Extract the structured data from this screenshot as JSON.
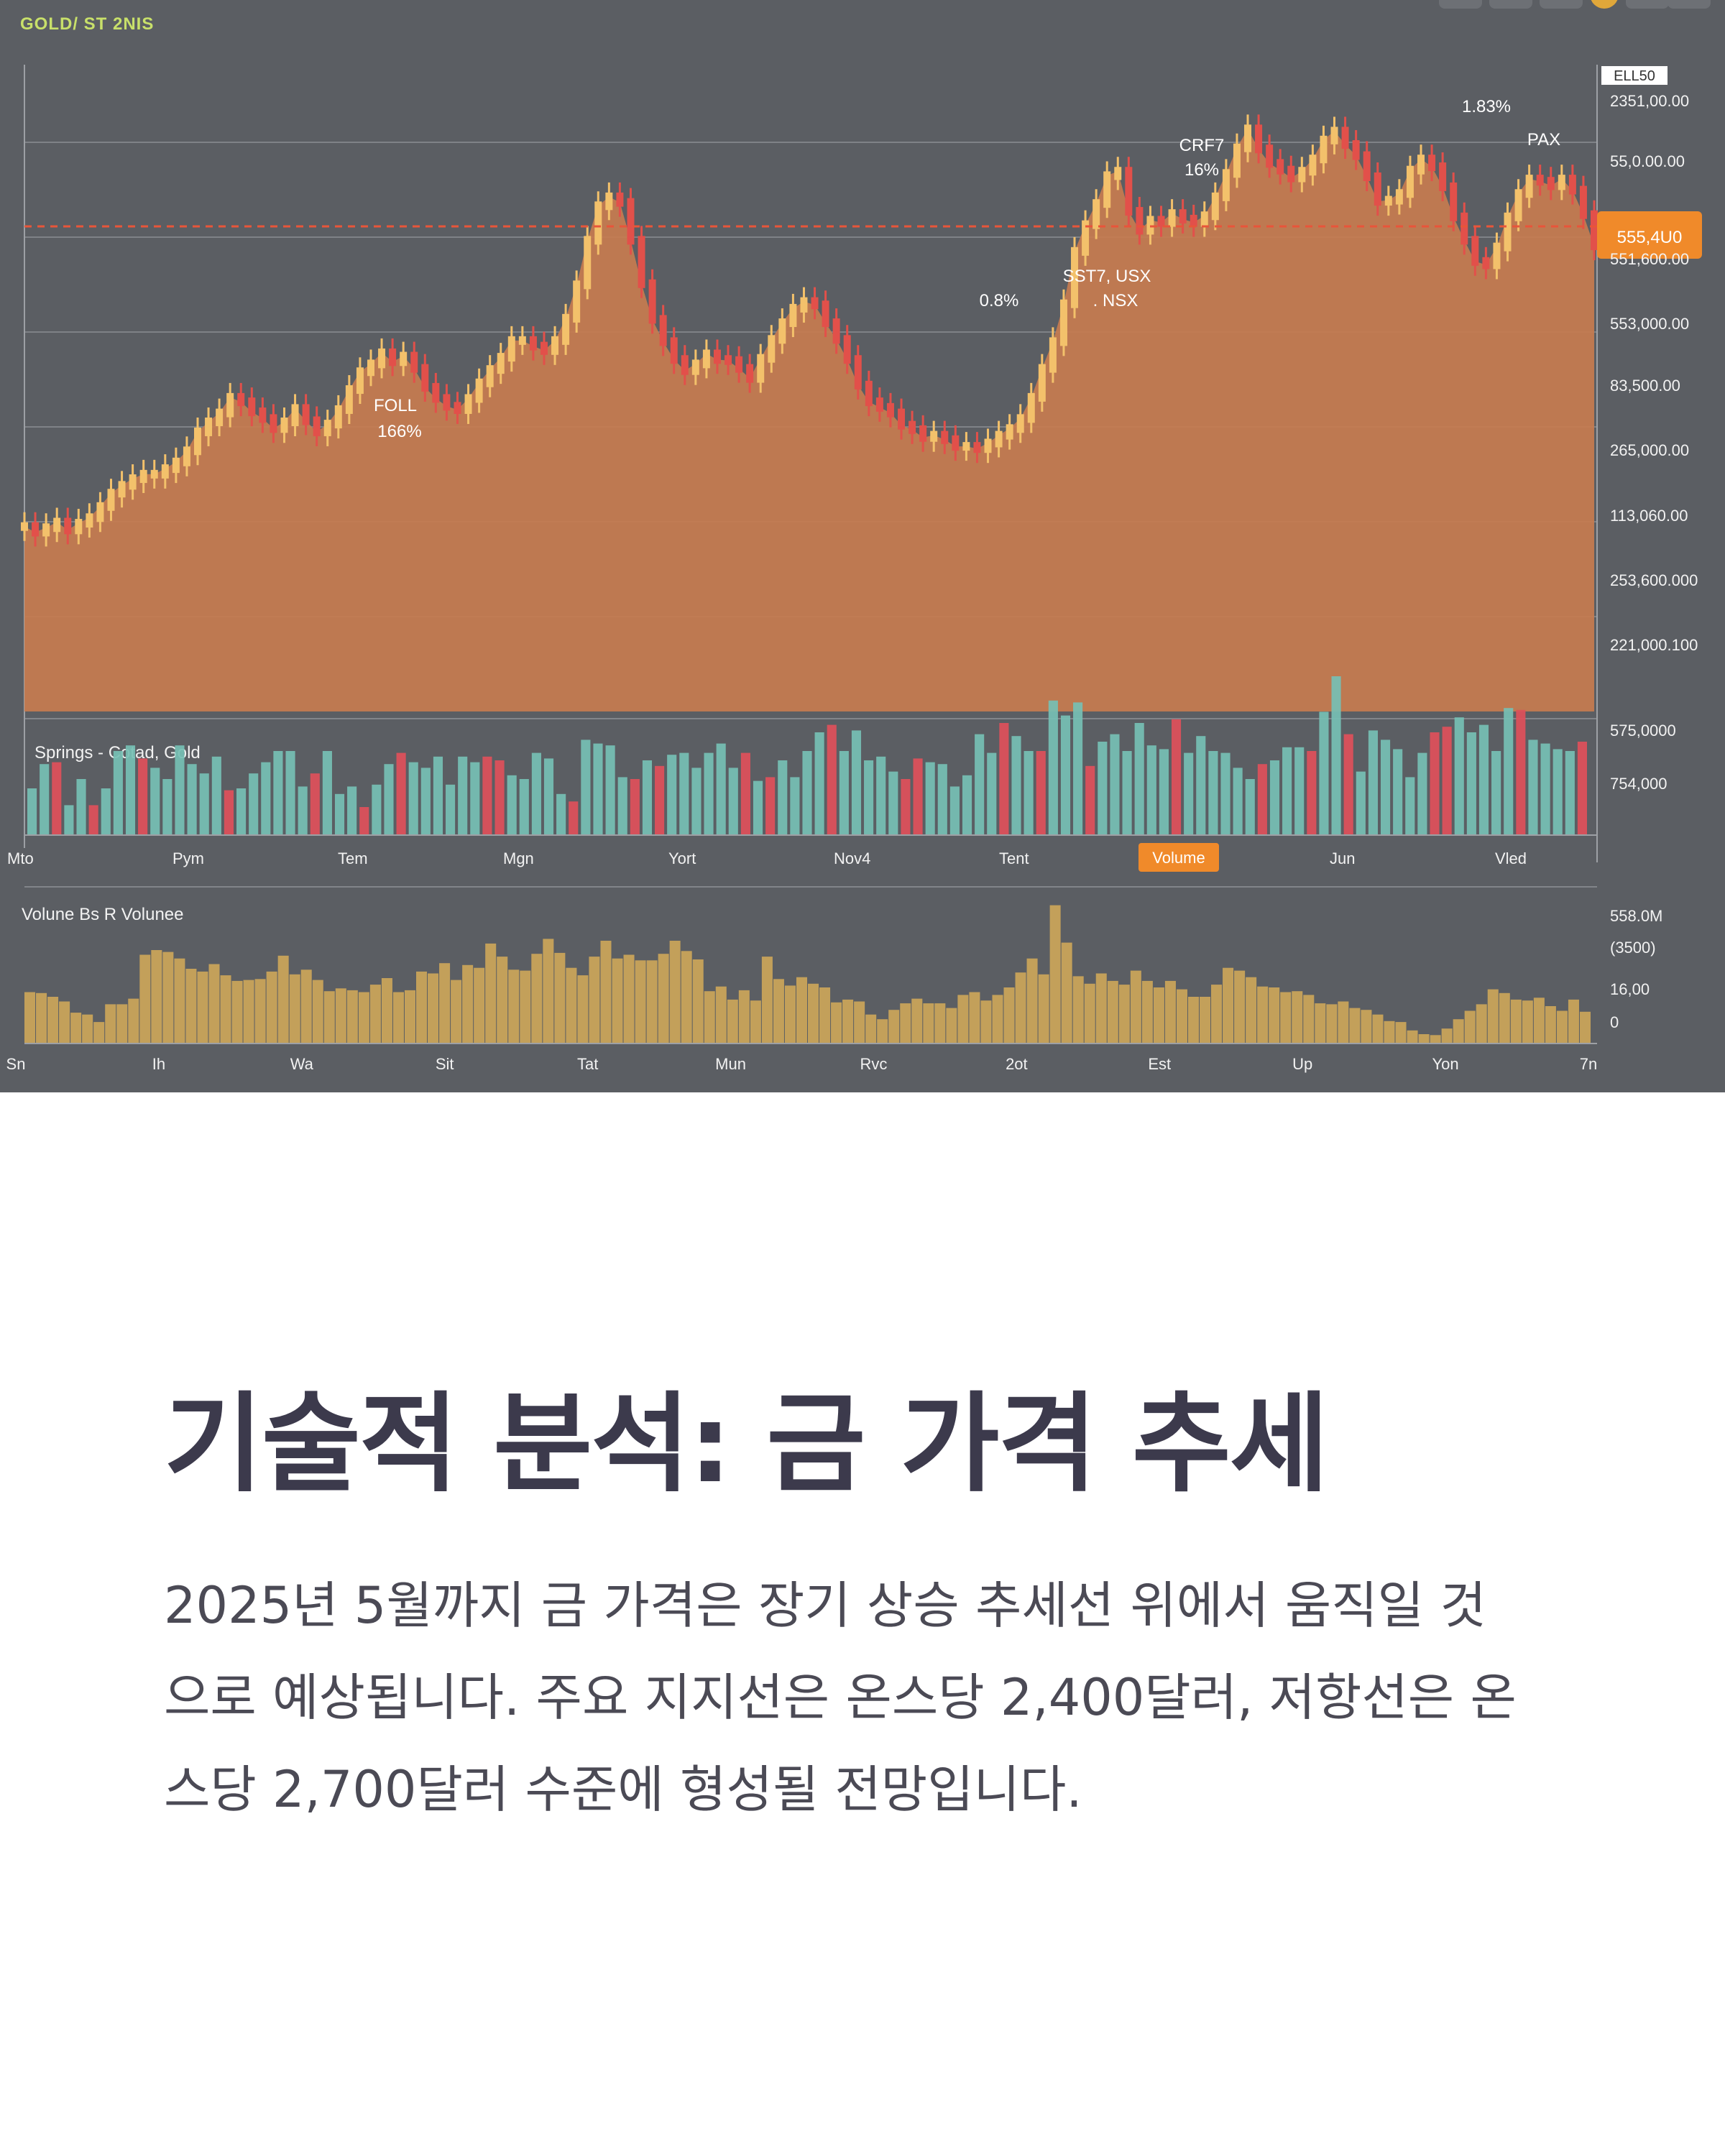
{
  "header": {
    "ticker": "GOLD/ ST 2NIS",
    "price_box_top": "ELL50"
  },
  "colors": {
    "panel_bg": "#5b5e63",
    "area_fill": "#c77c4f",
    "candle_up": "#f3c16b",
    "candle_down": "#e2504a",
    "vol_teal": "#76c0b4",
    "vol_red": "#e0505a",
    "vol2": "#c9a35a",
    "ref_line": "#e8553a",
    "badge": "#f08a2a"
  },
  "chart_data": [
    {
      "type": "line",
      "subtype": "candlestick-area",
      "title": "",
      "y_tick_labels": [
        "2351,00.00",
        "55,0.00.00",
        "551,600.00",
        "553,000.00",
        "83,500.00",
        "265,000.00",
        "113,060.00",
        "253,600.000",
        "221,000.100"
      ],
      "price_series": [
        66,
        61,
        65,
        70,
        63,
        69,
        74,
        84,
        96,
        103,
        109,
        113,
        113,
        118,
        124,
        134,
        151,
        160,
        168,
        182,
        178,
        169,
        163,
        154,
        160,
        172,
        161,
        151,
        158,
        171,
        189,
        205,
        212,
        222,
        214,
        219,
        208,
        191,
        181,
        174,
        171,
        181,
        195,
        207,
        218,
        233,
        233,
        228,
        224,
        233,
        253,
        283,
        323,
        354,
        362,
        357,
        323,
        284,
        252,
        232,
        216,
        206,
        212,
        221,
        216,
        215,
        208,
        199,
        217,
        234,
        249,
        262,
        268,
        265,
        249,
        234,
        216,
        193,
        178,
        173,
        168,
        157,
        153,
        146,
        148,
        144,
        138,
        138,
        136,
        141,
        148,
        154,
        163,
        182,
        208,
        232,
        266,
        313,
        337,
        356,
        381,
        385,
        349,
        332,
        341,
        339,
        347,
        342,
        339,
        345,
        362,
        383,
        406,
        423,
        405,
        392,
        386,
        379,
        385,
        396,
        413,
        421,
        409,
        399,
        380,
        358,
        359,
        365,
        386,
        396,
        389,
        371,
        344,
        323,
        304,
        301,
        317,
        344,
        365,
        378,
        376,
        372,
        378,
        368,
        346,
        318
      ],
      "annotations": [
        {
          "text": "FOLL"
        },
        {
          "text": "166%"
        },
        {
          "text": "0.8%"
        },
        {
          "text": "SST7, USX"
        },
        {
          "text": ". NSX"
        },
        {
          "text": "CRF7"
        },
        {
          "text": "16%"
        },
        {
          "text": "1.83%"
        },
        {
          "text": "PAX"
        }
      ],
      "reference_line_label": "555,4U0"
    },
    {
      "type": "bar",
      "title": "Springs - Cotad, Gold",
      "y_tick_labels": [
        "575,0000",
        "754,000"
      ],
      "x_tick_labels": [
        "Mto",
        "Pym",
        "Tem",
        "Mgn",
        "Yort",
        "Nov4",
        "Tent",
        "Volume",
        "Jun",
        "Vled"
      ],
      "values": [
        25,
        38,
        39,
        16,
        30,
        16,
        25,
        45,
        48,
        41,
        36,
        30,
        48,
        38,
        33,
        42,
        24,
        25,
        33,
        39,
        45,
        45,
        26,
        33,
        45,
        22,
        26,
        15,
        27,
        38,
        44,
        39,
        36,
        42,
        27,
        42,
        39,
        42,
        40,
        32,
        30,
        44,
        41,
        22,
        18,
        51,
        49,
        48,
        31,
        30,
        40,
        37,
        43,
        44,
        36,
        44,
        49,
        36,
        44,
        29,
        31,
        40,
        31,
        45,
        55,
        59,
        45,
        56,
        40,
        42,
        34,
        30,
        41,
        39,
        38,
        26,
        32,
        54,
        44,
        60,
        53,
        45,
        45,
        72,
        64,
        71,
        37,
        50,
        54,
        45,
        60,
        48,
        46,
        62,
        44,
        53,
        45,
        44,
        36,
        30,
        38,
        40,
        47,
        47,
        45,
        66,
        85,
        54,
        34,
        56,
        51,
        46,
        31,
        44,
        55,
        58,
        63,
        55,
        59,
        45,
        68,
        67,
        51,
        49,
        46,
        45,
        50
      ],
      "highlight_index": 106
    },
    {
      "type": "bar",
      "title": "Volune Bs R Volunee",
      "y_tick_labels": [
        "558.0M",
        "(3500)",
        "16,00",
        "0"
      ],
      "x_tick_labels": [
        "Sn",
        "Ih",
        "Wa",
        "Sit",
        "Tat",
        "Mun",
        "Rvc",
        "2ot",
        "Est",
        "Up",
        "Yon",
        "7n"
      ],
      "values": [
        55,
        54,
        50,
        45,
        33,
        31,
        23,
        42,
        42,
        48,
        95,
        100,
        98,
        91,
        80,
        77,
        85,
        73,
        67,
        68,
        69,
        77,
        94,
        74,
        79,
        68,
        56,
        59,
        57,
        55,
        63,
        70,
        55,
        57,
        77,
        75,
        86,
        68,
        84,
        81,
        107,
        93,
        79,
        78,
        96,
        112,
        97,
        81,
        73,
        93,
        110,
        91,
        95,
        89,
        89,
        96,
        110,
        99,
        90,
        56,
        61,
        47,
        57,
        46,
        93,
        69,
        62,
        71,
        64,
        60,
        44,
        47,
        45,
        31,
        26,
        36,
        43,
        48,
        43,
        43,
        38,
        52,
        55,
        46,
        52,
        60,
        76,
        91,
        74,
        148,
        108,
        72,
        64,
        75,
        67,
        63,
        78,
        67,
        60,
        67,
        58,
        50,
        50,
        63,
        81,
        78,
        71,
        61,
        60,
        55,
        56,
        52,
        43,
        42,
        45,
        38,
        36,
        31,
        24,
        23,
        14,
        10,
        9,
        16,
        26,
        35,
        42,
        58,
        54,
        47,
        46,
        49,
        40,
        35,
        47,
        34
      ]
    }
  ],
  "article": {
    "title": "기술적 분석: 금 가격 추세",
    "body": "2025년 5월까지 금 가격은 장기 상승 추세선 위에서 움직일 것으로 예상됩니다. 주요 지지선은 온스당 2,400달러, 저항선은 온스당 2,700달러 수준에 형성될 전망입니다."
  }
}
